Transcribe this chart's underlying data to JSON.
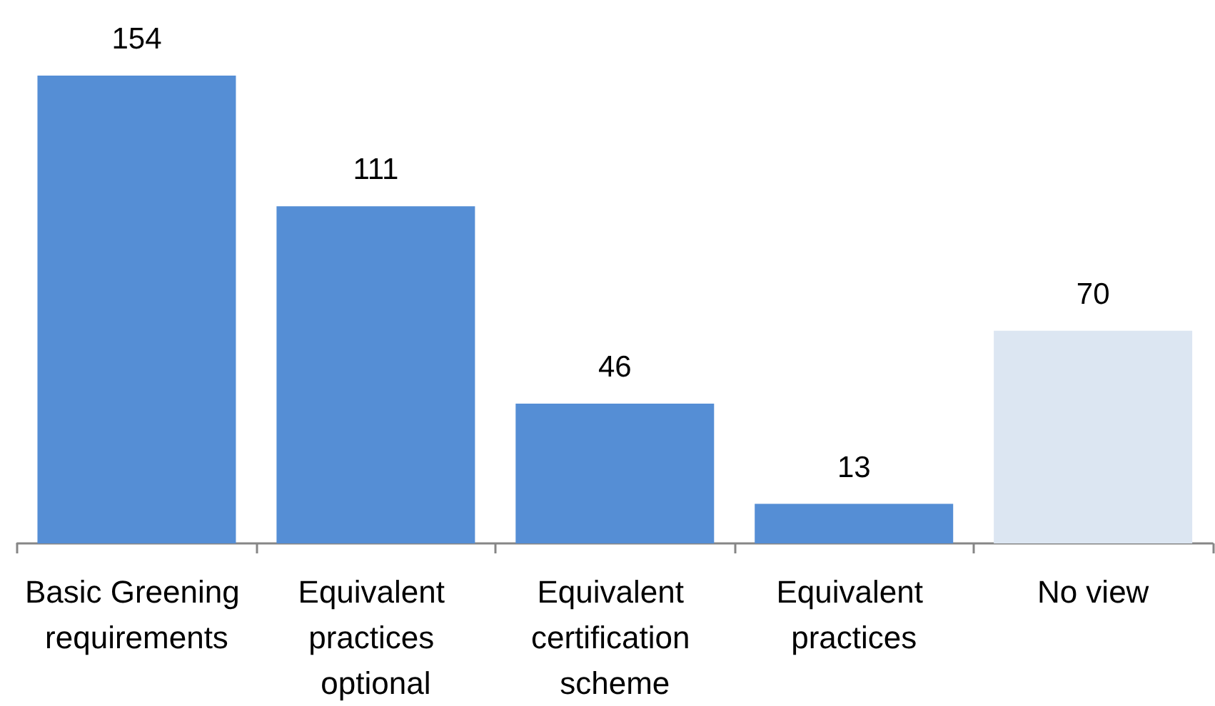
{
  "chart_data": {
    "type": "bar",
    "categories": [
      "Basic Greening requirements",
      "Equivalent practices optional",
      "Equivalent certification scheme",
      "Equivalent practices",
      "No view"
    ],
    "values": [
      154,
      111,
      46,
      13,
      70
    ],
    "colors": [
      "#558ed5",
      "#558ed5",
      "#558ed5",
      "#558ed5",
      "#dce6f2"
    ],
    "data_labels": true
  }
}
